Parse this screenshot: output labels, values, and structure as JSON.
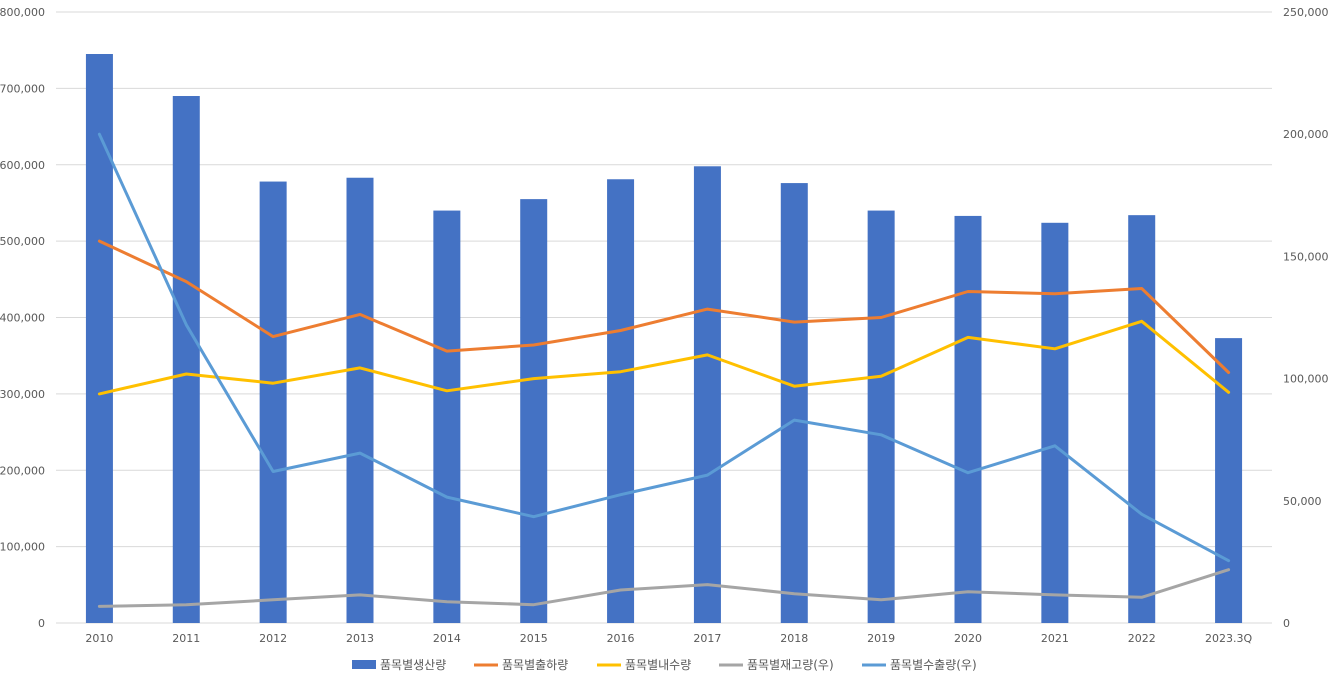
{
  "chart_data": {
    "type": "bar",
    "title": "",
    "xlabel": "",
    "ylabel": "",
    "categories": [
      "2010",
      "2011",
      "2012",
      "2013",
      "2014",
      "2015",
      "2016",
      "2017",
      "2018",
      "2019",
      "2020",
      "2021",
      "2022",
      "2023.3Q"
    ],
    "ylim": [
      0,
      800000
    ],
    "y2lim": [
      0,
      250000
    ],
    "grid": true,
    "legend_position": "bottom",
    "left_ticks": [
      "0",
      "100,000",
      "200,000",
      "300,000",
      "400,000",
      "500,000",
      "600,000",
      "700,000",
      "800,000"
    ],
    "right_ticks": [
      "0",
      "50,000",
      "100,000",
      "150,000",
      "200,000",
      "250,000"
    ],
    "series": [
      {
        "name": "품목별생산량",
        "kind": "bar",
        "axis": "left",
        "color": "#4472C4",
        "values": [
          745000,
          690000,
          578000,
          583000,
          540000,
          555000,
          581000,
          598000,
          576000,
          540000,
          533000,
          524000,
          534000,
          373000
        ]
      },
      {
        "name": "품목별출하량",
        "kind": "line",
        "axis": "left",
        "color": "#ED7D31",
        "values": [
          500000,
          447000,
          375000,
          404000,
          356000,
          364000,
          383000,
          411000,
          394000,
          400000,
          434000,
          431000,
          438000,
          328000
        ]
      },
      {
        "name": "품목별내수량",
        "kind": "line",
        "axis": "left",
        "color": "#FFC000",
        "values": [
          300000,
          326000,
          314000,
          334000,
          304000,
          320000,
          329000,
          351000,
          310000,
          323000,
          374000,
          359000,
          395000,
          302000
        ]
      },
      {
        "name": "품목별재고량(우)",
        "kind": "line",
        "axis": "right",
        "color": "#A5A5A5",
        "values": [
          6800,
          7500,
          9500,
          11500,
          8700,
          7500,
          13500,
          15700,
          12000,
          9500,
          12800,
          11500,
          10500,
          21800
        ]
      },
      {
        "name": "품목별수출량(우)",
        "kind": "line",
        "axis": "right",
        "color": "#5B9BD5",
        "values": [
          200000,
          122000,
          62000,
          69500,
          51500,
          43500,
          52500,
          60500,
          83000,
          77000,
          61500,
          72500,
          44500,
          25500
        ]
      }
    ]
  }
}
